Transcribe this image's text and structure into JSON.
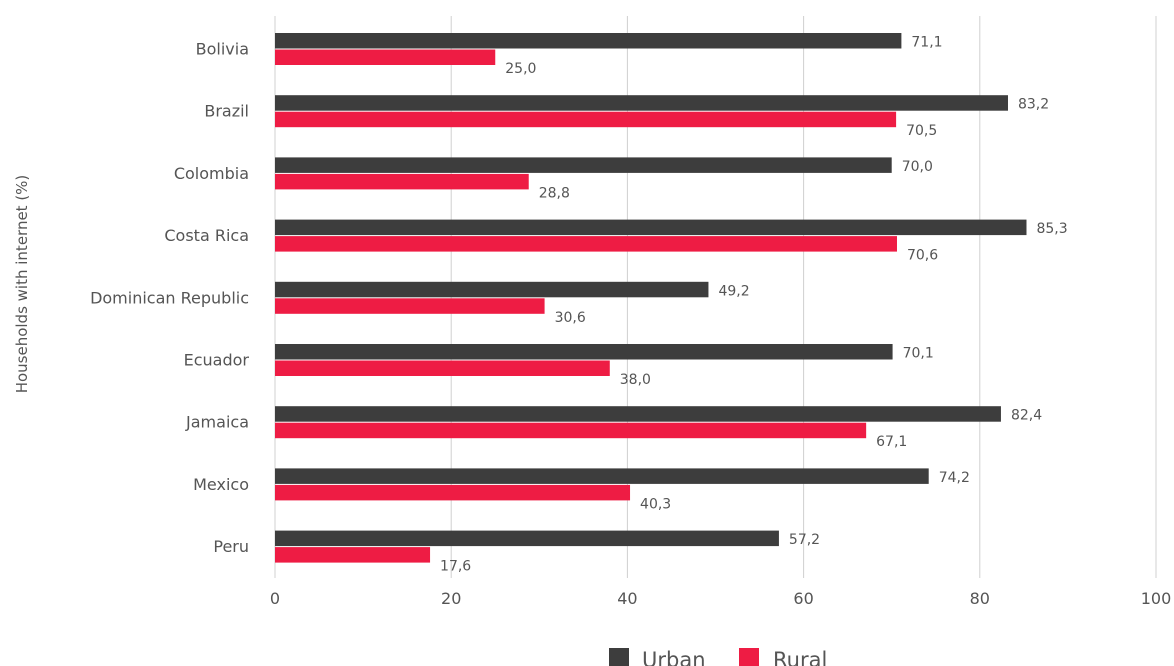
{
  "chart_data": {
    "type": "bar",
    "orientation": "horizontal",
    "categories": [
      "Bolivia",
      "Brazil",
      "Colombia",
      "Costa Rica",
      "Dominican Republic",
      "Ecuador",
      "Jamaica",
      "Mexico",
      "Peru"
    ],
    "series": [
      {
        "name": "Urban",
        "color": "#3d3d3d",
        "values": [
          71.1,
          83.2,
          70.0,
          85.3,
          49.2,
          70.1,
          82.4,
          74.2,
          57.2
        ],
        "labels": [
          "71,1",
          "83,2",
          "70,0",
          "85,3",
          "49,2",
          "70,1",
          "82,4",
          "74,2",
          "57,2"
        ]
      },
      {
        "name": "Rural",
        "color": "#ee1c44",
        "values": [
          25.0,
          70.5,
          28.8,
          70.6,
          30.6,
          38.0,
          67.1,
          40.3,
          17.6
        ],
        "labels": [
          "25,0",
          "70,5",
          "28,8",
          "70,6",
          "30,6",
          "38,0",
          "67,1",
          "40,3",
          "17,6"
        ]
      }
    ],
    "title": "",
    "xlabel": "",
    "ylabel": "Households with internet (%)",
    "xlim": [
      0,
      100
    ],
    "xticks": [
      "0",
      "20",
      "40",
      "60",
      "80",
      "100"
    ],
    "grid": true,
    "legend": "bottom"
  }
}
